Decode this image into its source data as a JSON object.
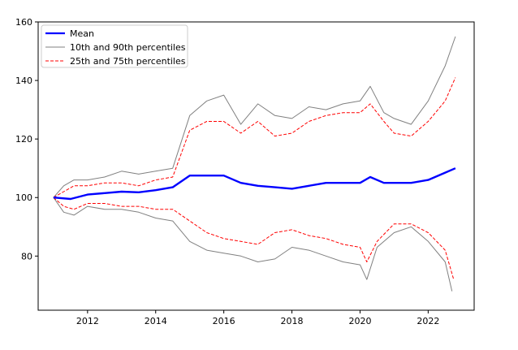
{
  "chart_data": {
    "type": "line",
    "title": "",
    "xlabel": "",
    "ylabel": "",
    "xlim": [
      2010.55,
      2023.35
    ],
    "ylim": [
      61.5,
      160
    ],
    "xticks": [
      2012,
      2014,
      2016,
      2018,
      2020,
      2022
    ],
    "yticks": [
      80,
      100,
      120,
      140,
      160
    ],
    "legend": {
      "position": "top-left",
      "entries": [
        "Mean",
        "10th and 90th percentiles",
        "25th and 75th percentiles"
      ]
    },
    "grid": false,
    "series": [
      {
        "name": "Mean",
        "style": "solid-thick",
        "color": "#0000ff",
        "x": [
          2011.0,
          2011.5,
          2012.0,
          2012.5,
          2013.0,
          2013.5,
          2014.0,
          2014.5,
          2015.0,
          2015.5,
          2016.0,
          2016.5,
          2017.0,
          2017.5,
          2018.0,
          2018.5,
          2019.0,
          2019.5,
          2020.0,
          2020.3,
          2020.7,
          2021.0,
          2021.5,
          2022.0,
          2022.5,
          2022.8
        ],
        "y": [
          100.0,
          99.5,
          101.0,
          101.5,
          102.0,
          101.8,
          102.5,
          103.5,
          107.5,
          107.5,
          107.5,
          105.0,
          104.0,
          103.5,
          103.0,
          104.0,
          105.0,
          105.0,
          105.0,
          107.0,
          105.0,
          105.0,
          105.0,
          106.0,
          108.5,
          110.0
        ]
      },
      {
        "name": "10th percentile",
        "legend_group": "10th and 90th percentiles",
        "style": "solid-thin",
        "color": "#808080",
        "x": [
          2011.0,
          2011.3,
          2011.6,
          2012.0,
          2012.5,
          2013.0,
          2013.5,
          2014.0,
          2014.5,
          2015.0,
          2015.5,
          2016.0,
          2016.5,
          2017.0,
          2017.5,
          2018.0,
          2018.5,
          2019.0,
          2019.5,
          2020.0,
          2020.2,
          2020.5,
          2021.0,
          2021.5,
          2022.0,
          2022.5,
          2022.7
        ],
        "y": [
          100,
          95,
          94,
          97,
          96,
          96,
          95,
          93,
          92,
          85,
          82,
          81,
          80,
          78,
          79,
          83,
          82,
          80,
          78,
          77,
          72,
          83,
          88,
          90,
          85,
          78,
          68
        ]
      },
      {
        "name": "90th percentile",
        "legend_group": "10th and 90th percentiles",
        "style": "solid-thin",
        "color": "#808080",
        "x": [
          2011.0,
          2011.3,
          2011.6,
          2012.0,
          2012.5,
          2013.0,
          2013.5,
          2014.0,
          2014.5,
          2015.0,
          2015.5,
          2016.0,
          2016.5,
          2017.0,
          2017.5,
          2018.0,
          2018.5,
          2019.0,
          2019.5,
          2020.0,
          2020.3,
          2020.7,
          2021.0,
          2021.5,
          2022.0,
          2022.5,
          2022.8
        ],
        "y": [
          100,
          104,
          106,
          106,
          107,
          109,
          108,
          109,
          110,
          128,
          133,
          135,
          125,
          132,
          128,
          127,
          131,
          130,
          132,
          133,
          138,
          129,
          127,
          125,
          133,
          145,
          155
        ]
      },
      {
        "name": "25th percentile",
        "legend_group": "25th and 75th percentiles",
        "style": "dashed",
        "color": "#ff0000",
        "x": [
          2011.0,
          2011.3,
          2011.6,
          2012.0,
          2012.5,
          2013.0,
          2013.5,
          2014.0,
          2014.5,
          2015.0,
          2015.5,
          2016.0,
          2016.5,
          2017.0,
          2017.5,
          2018.0,
          2018.5,
          2019.0,
          2019.5,
          2020.0,
          2020.2,
          2020.5,
          2021.0,
          2021.5,
          2022.0,
          2022.5,
          2022.75
        ],
        "y": [
          100,
          97,
          96,
          98,
          98,
          97,
          97,
          96,
          96,
          92,
          88,
          86,
          85,
          84,
          88,
          89,
          87,
          86,
          84,
          83,
          78,
          85,
          91,
          91,
          88,
          82,
          72
        ]
      },
      {
        "name": "75th percentile",
        "legend_group": "25th and 75th percentiles",
        "style": "dashed",
        "color": "#ff0000",
        "x": [
          2011.0,
          2011.3,
          2011.6,
          2012.0,
          2012.5,
          2013.0,
          2013.5,
          2014.0,
          2014.5,
          2015.0,
          2015.5,
          2016.0,
          2016.5,
          2017.0,
          2017.5,
          2018.0,
          2018.5,
          2019.0,
          2019.5,
          2020.0,
          2020.3,
          2020.7,
          2021.0,
          2021.5,
          2022.0,
          2022.5,
          2022.8
        ],
        "y": [
          100,
          102,
          104,
          104,
          105,
          105,
          104,
          106,
          107,
          123,
          126,
          126,
          122,
          126,
          121,
          122,
          126,
          128,
          129,
          129,
          132,
          126,
          122,
          121,
          126,
          133,
          141
        ]
      }
    ]
  }
}
